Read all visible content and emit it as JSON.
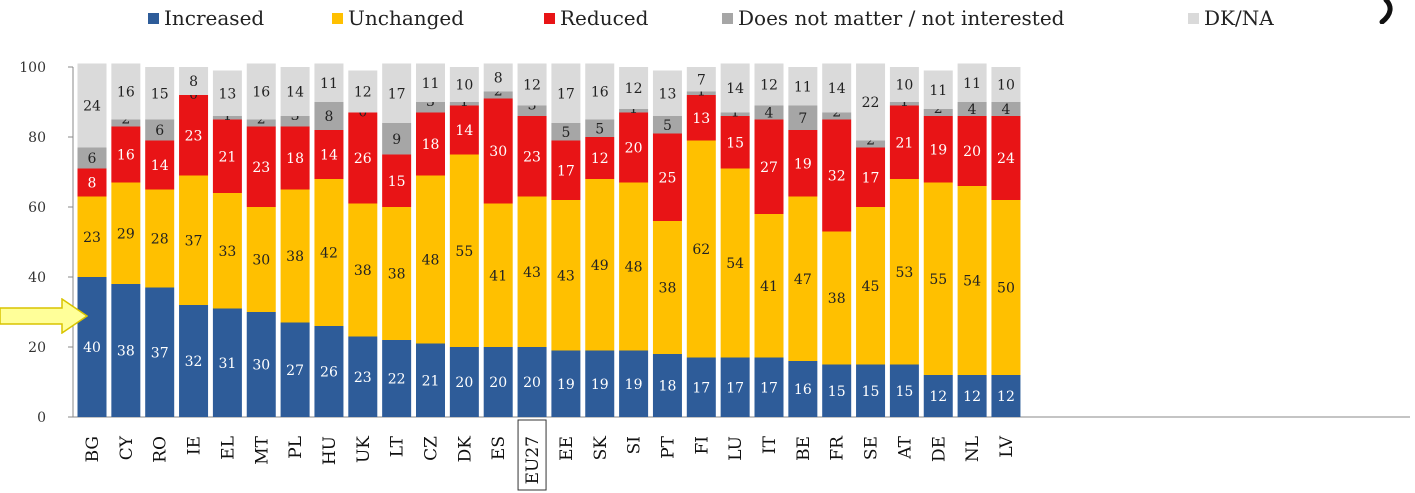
{
  "legend": [
    {
      "label": "Increased",
      "color": "#2E5C99"
    },
    {
      "label": "Unchanged",
      "color": "#FFC000"
    },
    {
      "label": "Reduced",
      "color": "#E81416"
    },
    {
      "label": "Does not matter / not interested",
      "color": "#A6A6A6"
    },
    {
      "label": "DK/NA",
      "color": "#DADADA"
    }
  ],
  "highlight": {
    "category": "EU27"
  },
  "pointer": {
    "icon": "arrow-right-icon",
    "color": "#FFFF99",
    "points_to_category": "BG"
  },
  "chart_data": {
    "type": "bar",
    "stacked": true,
    "ylim": [
      0,
      100
    ],
    "yticks": [
      0,
      20,
      40,
      60,
      80,
      100
    ],
    "grid": false,
    "legend_position": "top",
    "categories": [
      "BG",
      "CY",
      "RO",
      "IE",
      "EL",
      "MT",
      "PL",
      "HU",
      "UK",
      "LT",
      "CZ",
      "DK",
      "ES",
      "EU27",
      "EE",
      "SK",
      "SI",
      "PT",
      "FI",
      "LU",
      "IT",
      "BE",
      "FR",
      "SE",
      "AT",
      "DE",
      "NL",
      "LV"
    ],
    "series": [
      {
        "name": "Increased",
        "color": "#2E5C99",
        "label_color": "#FFFFFF",
        "values": [
          40,
          38,
          37,
          32,
          31,
          30,
          27,
          26,
          23,
          22,
          21,
          20,
          20,
          20,
          19,
          19,
          19,
          18,
          17,
          17,
          17,
          16,
          15,
          15,
          15,
          12,
          12,
          12
        ]
      },
      {
        "name": "Unchanged",
        "color": "#FFC000",
        "label_color": "#222222",
        "values": [
          23,
          29,
          28,
          37,
          33,
          30,
          38,
          42,
          38,
          38,
          48,
          55,
          41,
          43,
          43,
          49,
          48,
          38,
          62,
          54,
          41,
          47,
          38,
          45,
          53,
          55,
          54,
          50
        ]
      },
      {
        "name": "Reduced",
        "color": "#E81416",
        "label_color": "#FFFFFF",
        "values": [
          8,
          16,
          14,
          23,
          21,
          23,
          18,
          14,
          26,
          15,
          18,
          14,
          30,
          23,
          17,
          12,
          20,
          25,
          13,
          15,
          27,
          19,
          32,
          17,
          21,
          19,
          20,
          24
        ]
      },
      {
        "name": "Does not matter / not interested",
        "color": "#A6A6A6",
        "label_color": "#222222",
        "values": [
          6,
          2,
          6,
          0,
          1,
          2,
          3,
          8,
          0,
          9,
          3,
          1,
          2,
          3,
          5,
          5,
          1,
          5,
          1,
          1,
          4,
          7,
          2,
          2,
          1,
          2,
          4,
          4
        ]
      },
      {
        "name": "DK/NA",
        "color": "#DADADA",
        "label_color": "#222222",
        "values": [
          24,
          16,
          15,
          8,
          13,
          16,
          14,
          11,
          12,
          17,
          11,
          10,
          8,
          12,
          17,
          16,
          12,
          13,
          7,
          14,
          12,
          11,
          14,
          22,
          10,
          11,
          11,
          10
        ]
      }
    ]
  }
}
